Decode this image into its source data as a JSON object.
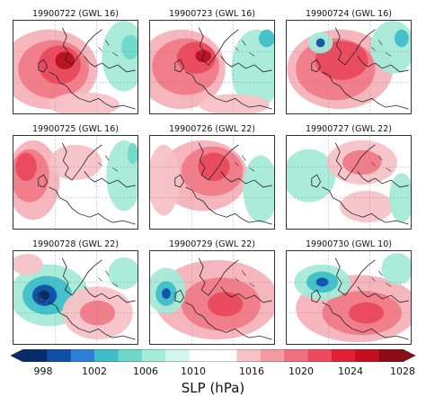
{
  "panels": [
    {
      "title": "19900722  (GWL 16)",
      "pattern": "ridge-uk-strong"
    },
    {
      "title": "19900723  (GWL 16)",
      "pattern": "ridge-north-sea"
    },
    {
      "title": "19900724  (GWL 16)",
      "pattern": "ridge-scandinavia-low-west"
    },
    {
      "title": "19900725  (GWL 16)",
      "pattern": "ridge-west-weak"
    },
    {
      "title": "19900726  (GWL 22)",
      "pattern": "ridge-central-north"
    },
    {
      "title": "19900727  (GWL 22)",
      "pattern": "ridge-scandinavia-weak"
    },
    {
      "title": "19900728  (GWL 22)",
      "pattern": "low-west-ridge-south"
    },
    {
      "title": "19900729  (GWL 22)",
      "pattern": "low-west-ridge-southeast"
    },
    {
      "title": "19900730  (GWL 10)",
      "pattern": "low-northwest-ridge-south"
    }
  ],
  "colorbar": {
    "title": "SLP (hPa)",
    "tick_labels": [
      "998",
      "1002",
      "1006",
      "1010",
      "1016",
      "1020",
      "1024",
      "1028"
    ],
    "colors": [
      "#0a2b6b",
      "#0d4fa8",
      "#2f7fd6",
      "#3ebfc8",
      "#6ed9c9",
      "#a5ecd9",
      "#d2f6ec",
      "#ffffff",
      "#ffffff",
      "#f7c3c7",
      "#f49aa3",
      "#ef717f",
      "#ea4c5e",
      "#e21f35",
      "#c40d1f",
      "#8e0a15"
    ]
  }
}
